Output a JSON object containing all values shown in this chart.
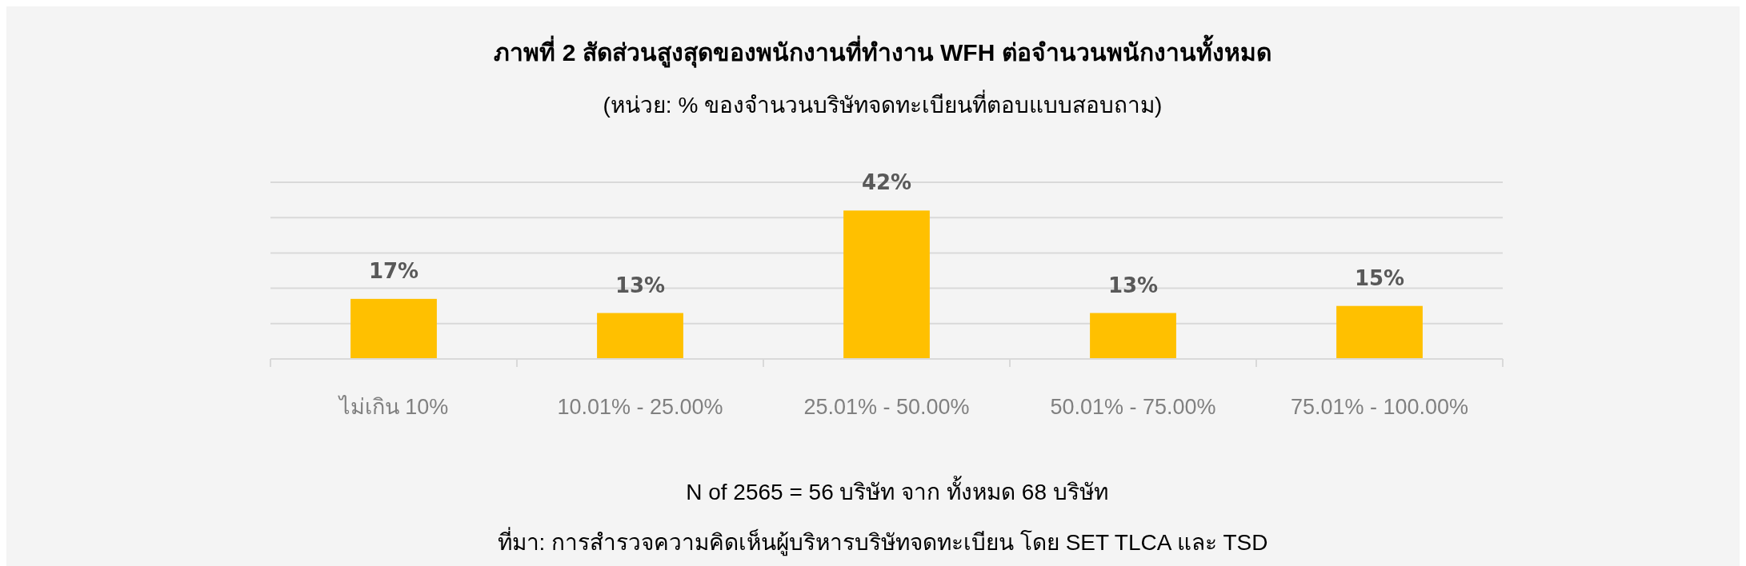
{
  "chart_data": {
    "type": "bar",
    "title": "ภาพที่ 2 สัดส่วนสูงสุดของพนักงานที่ทำงาน WFH ต่อจำนวนพนักงานทั้งหมด",
    "subtitle": "(หน่วย: % ของจำนวนบริษัทจดทะเบียนที่ตอบแบบสอบถาม)",
    "categories": [
      "ไม่เกิน 10%",
      "10.01% - 25.00%",
      "25.01% - 50.00%",
      "50.01% - 75.00%",
      "75.01% - 100.00%"
    ],
    "values": [
      17,
      13,
      42,
      13,
      15
    ],
    "value_labels": [
      "17%",
      "13%",
      "42%",
      "13%",
      "15%"
    ],
    "color": "#ffc000",
    "ylim": [
      0,
      50
    ],
    "yticks": [
      {
        "value": 0,
        "label": null
      },
      {
        "value": 10,
        "label": null
      },
      {
        "value": 20,
        "label": null
      },
      {
        "value": 30,
        "label": null
      },
      {
        "value": 40,
        "label": null
      },
      {
        "value": 50,
        "label": null
      }
    ],
    "grid": "y",
    "tick_labels": "x",
    "annotations": [
      "N of 2565 = 56 บริษัท จาก ทั้งหมด 68 บริษัท",
      "ที่มา: การสำรวจความคิดเห็นผู้บริหารบริษัทจดทะเบียน โดย SET TLCA และ TSD"
    ]
  }
}
